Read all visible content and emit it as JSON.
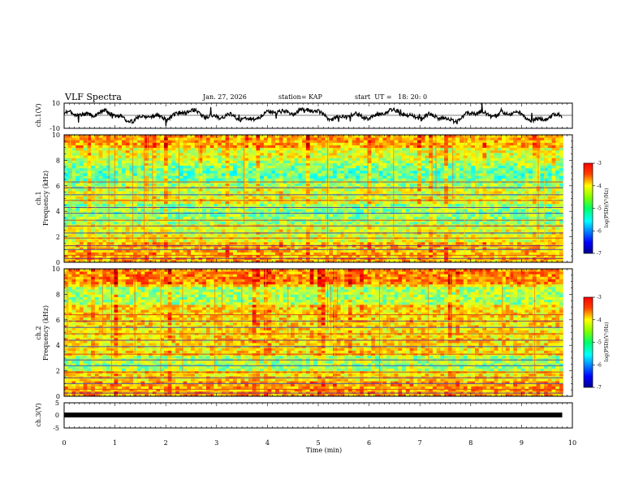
{
  "chart_data": {
    "type": "heatmap",
    "title": "VLF Spectra",
    "date": "Jan. 27, 2026",
    "station": "station= KAP",
    "start_ut": "start  UT =   18: 20: 0",
    "xlabel": "Time (min)",
    "xlim": [
      0,
      10
    ],
    "x_ticks": [
      "0",
      "1",
      "2",
      "3",
      "4",
      "5",
      "6",
      "7",
      "8",
      "9",
      "10"
    ],
    "panels": [
      {
        "id": "ch1-waveform",
        "type": "line",
        "ylabel": "ch.1(V)",
        "ylim": [
          -10,
          10
        ],
        "y_ticks": [
          "10",
          "-10"
        ],
        "trace_end_min": 9.8
      },
      {
        "id": "ch1-spectrogram",
        "type": "heatmap",
        "ylabel_channel": "ch.1",
        "ylabel": "Frequency (kHz)",
        "ylim": [
          0,
          10
        ],
        "y_ticks": [
          "0",
          "2",
          "4",
          "6",
          "8",
          "10"
        ],
        "colorbar": {
          "label": "log(PSD)(V²/Hz)",
          "range": [
            -7,
            -3
          ],
          "ticks": [
            "-3",
            "-4",
            "-5",
            "-6",
            "-7"
          ]
        }
      },
      {
        "id": "ch2-spectrogram",
        "type": "heatmap",
        "ylabel_channel": "ch.2",
        "ylabel": "Frequency (kHz)",
        "ylim": [
          0,
          10
        ],
        "y_ticks": [
          "0",
          "2",
          "4",
          "6",
          "8",
          "10"
        ],
        "colorbar": {
          "label": "log(PSD)(V²/Hz)",
          "range": [
            -7,
            -3
          ],
          "ticks": [
            "-3",
            "-4",
            "-5",
            "-6",
            "-7"
          ]
        }
      },
      {
        "id": "ch3-waveform",
        "type": "line",
        "ylabel": "ch.3(V)",
        "ylim": [
          -5,
          5
        ],
        "y_ticks": [
          "5",
          "0",
          "-5"
        ],
        "trace_end_min": 9.8
      }
    ]
  }
}
